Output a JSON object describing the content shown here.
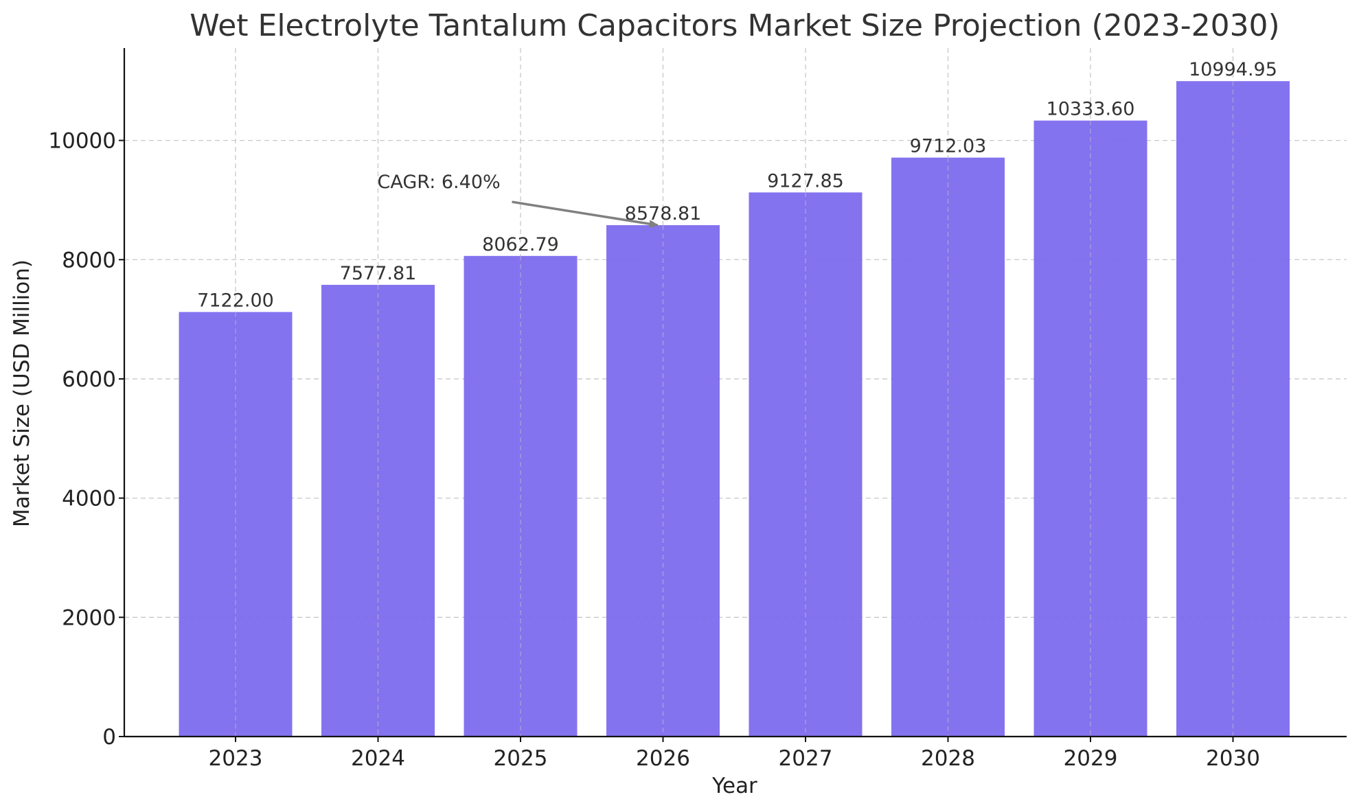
{
  "chart_data": {
    "type": "bar",
    "title": "Wet Electrolyte Tantalum Capacitors Market Size Projection (2023-2030)",
    "xlabel": "Year",
    "ylabel": "Market Size (USD Million)",
    "categories": [
      "2023",
      "2024",
      "2025",
      "2026",
      "2027",
      "2028",
      "2029",
      "2030"
    ],
    "values": [
      7122.0,
      7577.81,
      8062.79,
      8578.81,
      9127.85,
      9712.03,
      10333.6,
      10994.95
    ],
    "data_labels": [
      "7122.00",
      "7577.81",
      "8062.79",
      "8578.81",
      "9127.85",
      "9712.03",
      "10333.60",
      "10994.95"
    ],
    "yticks": [
      0,
      2000,
      4000,
      6000,
      8000,
      10000
    ],
    "ylim": [
      0,
      11550
    ],
    "grid": true,
    "bar_color": "#7b68ee",
    "annotation": {
      "text": "CAGR: 6.40%",
      "text_position": {
        "category": "2024",
        "value": 9200
      },
      "arrow_target": {
        "category": "2026",
        "value": 8578.81
      }
    }
  }
}
